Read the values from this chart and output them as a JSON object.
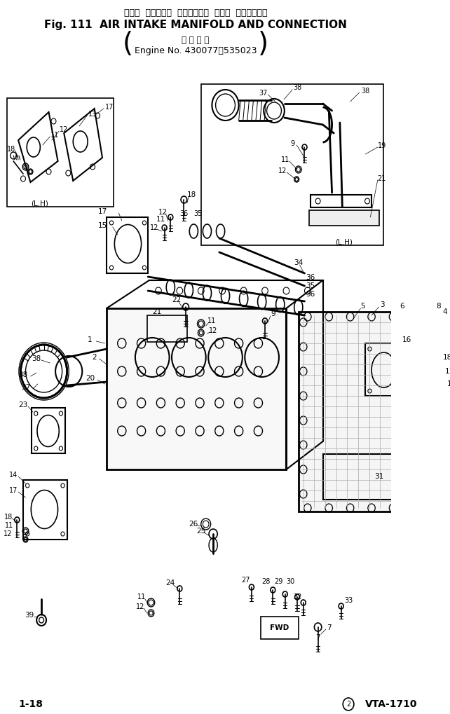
{
  "title_japanese": "エアー  インテーク  マニホールド  および  コネクション",
  "title_english": "Fig. 111  AIR INTAKE MANIFOLD AND CONNECTION",
  "subtitle_japanese": "適 用 号 機",
  "subtitle_engine": "Engine No. 430077～535023",
  "page_left": "1-18",
  "page_right": "② VTA-1710",
  "lh_label1": "(L.H)",
  "lh_label2": "(L.H)",
  "fwd_label": "FWD",
  "bg_color": "#ffffff"
}
